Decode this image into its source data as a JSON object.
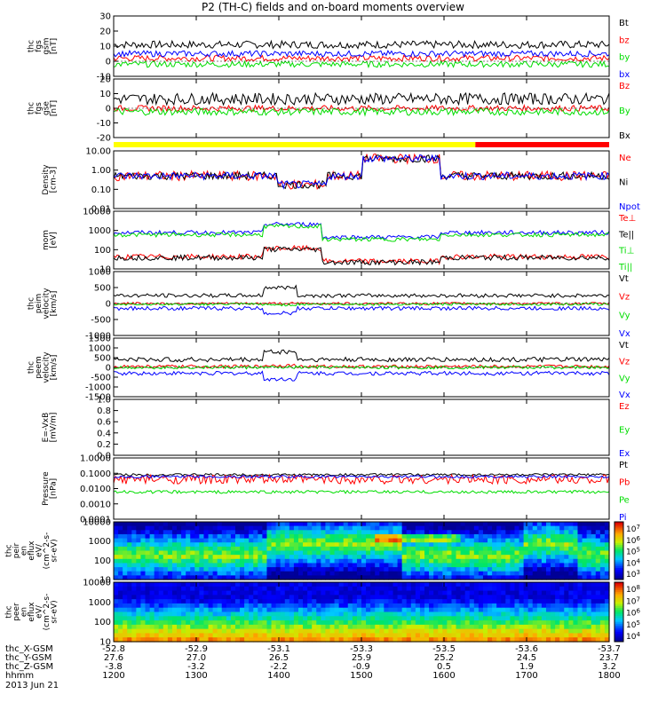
{
  "title": "P2 (TH-C) fields and on-board moments overview",
  "date_label": "2013 Jun 21",
  "colors": {
    "black": "#000000",
    "red": "#ff0000",
    "green": "#00dd00",
    "blue": "#0000ff",
    "yellow": "#ffff00",
    "bar_red": "#ff0000"
  },
  "chart_data": [
    {
      "type": "line",
      "id": "fgs-gsm",
      "ylabel": [
        "thc",
        "fgs",
        "gsm",
        "[nT]"
      ],
      "ylim": [
        -10,
        30
      ],
      "yticks": [
        "30",
        "20",
        "10",
        "0",
        "-10"
      ],
      "legend": [
        {
          "label": "Bt",
          "color": "black"
        },
        {
          "label": "bz",
          "color": "red"
        },
        {
          "label": "by",
          "color": "green"
        },
        {
          "label": "bx",
          "color": "blue"
        }
      ],
      "series": [
        {
          "name": "Bt",
          "color": "black",
          "level": 11,
          "noise": 2.5
        },
        {
          "name": "bz",
          "color": "red",
          "level": 2,
          "noise": 2
        },
        {
          "name": "by",
          "color": "green",
          "level": -2,
          "noise": 2
        },
        {
          "name": "bx",
          "color": "blue",
          "level": 5,
          "noise": 2
        }
      ]
    },
    {
      "type": "line",
      "id": "fgs-gse",
      "ylabel": [
        "thc",
        "fgs",
        "gse",
        "[nT]"
      ],
      "ylim": [
        -25,
        25
      ],
      "yticks": [
        "20",
        "10",
        "0",
        "-10",
        "-20"
      ],
      "legend": [
        {
          "label": "Bz",
          "color": "red"
        },
        {
          "label": "By",
          "color": "green"
        },
        {
          "label": "Bx",
          "color": "black"
        }
      ],
      "series": [
        {
          "name": "Bz",
          "color": "red",
          "level": 0,
          "noise": 2.5
        },
        {
          "name": "By",
          "color": "green",
          "level": -3,
          "noise": 3
        },
        {
          "name": "Bx",
          "color": "black",
          "level": 8,
          "noise": 5
        }
      ]
    },
    {
      "type": "line",
      "id": "density",
      "scale": "log",
      "ylabel": [
        "Density",
        "[cm-3]"
      ],
      "ylim": [
        0.01,
        10
      ],
      "yticks": [
        "10.00",
        "1.00",
        "0.10",
        "0.01"
      ],
      "legend": [
        {
          "label": "Ne",
          "color": "red"
        },
        {
          "label": "Ni",
          "color": "black"
        },
        {
          "label": "Npot",
          "color": "blue"
        }
      ],
      "series": [
        {
          "name": "Ne",
          "color": "red",
          "level": 0.5,
          "noise": 0.25
        },
        {
          "name": "Ni",
          "color": "black",
          "level": 0.5,
          "noise": 0.2
        },
        {
          "name": "Npot",
          "color": "blue",
          "level": 0.5,
          "noise": 0.2
        }
      ]
    },
    {
      "type": "line",
      "id": "temperature",
      "scale": "log",
      "ylabel": [
        "mom",
        "[eV]"
      ],
      "ylim": [
        5,
        10000
      ],
      "yticks": [
        "10000",
        "1000",
        "100",
        "10"
      ],
      "legend": [
        {
          "label": "Te⊥",
          "color": "red"
        },
        {
          "label": "Te||",
          "color": "black"
        },
        {
          "label": "Ti⊥",
          "color": "green"
        },
        {
          "label": "Ti||",
          "color": "green"
        }
      ],
      "series": [
        {
          "name": "Ti",
          "color": "blue",
          "level": 600,
          "noise": 0.12
        },
        {
          "name": "Ti2",
          "color": "green",
          "level": 450,
          "noise": 0.12
        },
        {
          "name": "Te",
          "color": "red",
          "level": 25,
          "noise": 0.15
        },
        {
          "name": "Te2",
          "color": "black",
          "level": 22,
          "noise": 0.15
        }
      ]
    },
    {
      "type": "line",
      "id": "peim-velocity",
      "ylabel": [
        "thc",
        "peim",
        "velocity",
        "[km/s]"
      ],
      "ylim": [
        -1000,
        1000
      ],
      "yticks": [
        "1000",
        "500",
        "0",
        "-500",
        "-1000"
      ],
      "legend": [
        {
          "label": "Vt",
          "color": "black"
        },
        {
          "label": "Vz",
          "color": "red"
        },
        {
          "label": "Vy",
          "color": "green"
        },
        {
          "label": "Vx",
          "color": "blue"
        }
      ],
      "series": [
        {
          "name": "Vt",
          "color": "black",
          "level": 250,
          "noise": 60
        },
        {
          "name": "Vz",
          "color": "red",
          "level": 0,
          "noise": 40
        },
        {
          "name": "Vy",
          "color": "green",
          "level": -20,
          "noise": 40
        },
        {
          "name": "Vx",
          "color": "blue",
          "level": -150,
          "noise": 60
        }
      ]
    },
    {
      "type": "line",
      "id": "peem-velocity",
      "ylabel": [
        "thc",
        "peem",
        "velocity",
        "[km/s]"
      ],
      "ylim": [
        -1500,
        1500
      ],
      "yticks": [
        "1500",
        "1000",
        "500",
        "0",
        "-500",
        "-1000",
        "-1500"
      ],
      "legend": [
        {
          "label": "Vt",
          "color": "black"
        },
        {
          "label": "Vz",
          "color": "red"
        },
        {
          "label": "Vy",
          "color": "green"
        },
        {
          "label": "Vx",
          "color": "blue"
        }
      ],
      "series": [
        {
          "name": "Vt",
          "color": "black",
          "level": 400,
          "noise": 120
        },
        {
          "name": "Vz",
          "color": "red",
          "level": 50,
          "noise": 80
        },
        {
          "name": "Vy",
          "color": "green",
          "level": 0,
          "noise": 80
        },
        {
          "name": "Vx",
          "color": "blue",
          "level": -300,
          "noise": 100
        }
      ]
    },
    {
      "type": "line",
      "id": "efield",
      "ylabel": [
        "E=-VxB",
        "[mV/m]"
      ],
      "ylim": [
        0,
        1
      ],
      "yticks": [
        "1.0",
        "0.8",
        "0.6",
        "0.4",
        "0.2",
        "0.0"
      ],
      "legend": [
        {
          "label": "Ez",
          "color": "red"
        },
        {
          "label": "Ey",
          "color": "green"
        },
        {
          "label": "Ex",
          "color": "blue"
        }
      ],
      "series": []
    },
    {
      "type": "line",
      "id": "pressure",
      "scale": "log",
      "ylabel": [
        "Pressure",
        "[nPa]"
      ],
      "ylim": [
        0.0001,
        1
      ],
      "yticks": [
        "1.0000",
        "0.1000",
        "0.0100",
        "0.0010",
        "0.0001"
      ],
      "legend": [
        {
          "label": "Pt",
          "color": "black"
        },
        {
          "label": "Pb",
          "color": "red"
        },
        {
          "label": "Pe",
          "color": "green"
        },
        {
          "label": "Pi",
          "color": "blue"
        }
      ],
      "series": [
        {
          "name": "Pt",
          "color": "black",
          "level": 0.08,
          "noise": 0.08
        },
        {
          "name": "Pb",
          "color": "red",
          "level": 0.04,
          "noise": 0.3
        },
        {
          "name": "Pe",
          "color": "green",
          "level": 0.006,
          "noise": 0.1
        },
        {
          "name": "Pi",
          "color": "blue",
          "level": 0.06,
          "noise": 0.08
        }
      ]
    },
    {
      "type": "heatmap",
      "id": "peir-eflux",
      "ylabel": [
        "thc",
        "peir",
        "en",
        "eflux",
        "eV/",
        "(cm^2-s-",
        "sr-eV)"
      ],
      "yticks": [
        "10000",
        "1000",
        "100",
        "10"
      ],
      "colorbar_ticks": [
        "10^7",
        "10^6",
        "10^5",
        "10^4",
        "10^3"
      ]
    },
    {
      "type": "heatmap",
      "id": "peer-eflux",
      "ylabel": [
        "thc",
        "peer",
        "en",
        "eflux",
        "eV/",
        "(cm^2-s-",
        "sr-eV)"
      ],
      "yticks": [
        "10000",
        "1000",
        "100",
        "10"
      ],
      "colorbar_ticks": [
        "10^8",
        "10^7",
        "10^6",
        "10^5",
        "10^4"
      ]
    }
  ],
  "time_axis": {
    "rows": [
      {
        "label": "thc_X-GSM",
        "values": [
          "-52.8",
          "-52.9",
          "-53.1",
          "-53.3",
          "-53.5",
          "-53.6",
          "-53.7"
        ]
      },
      {
        "label": "thc_Y-GSM",
        "values": [
          "27.6",
          "27.0",
          "26.5",
          "25.9",
          "25.2",
          "24.5",
          "23.7"
        ]
      },
      {
        "label": "thc_Z-GSM",
        "values": [
          "-3.8",
          "-3.2",
          "-2.2",
          "-0.9",
          "0.5",
          "1.9",
          "3.2"
        ]
      },
      {
        "label": "hhmm",
        "values": [
          "1200",
          "1300",
          "1400",
          "1500",
          "1600",
          "1700",
          "1800"
        ]
      }
    ]
  },
  "mode_bar": {
    "yellow_until_fraction": 0.73
  }
}
